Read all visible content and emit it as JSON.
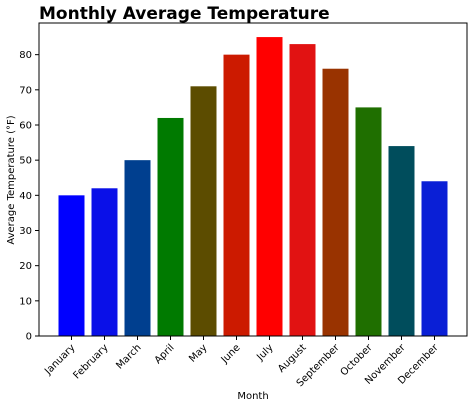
{
  "chart_data": {
    "type": "bar",
    "title": "Monthly Average Temperature",
    "xlabel": "Month",
    "ylabel": "Average Temperature (°F)",
    "categories": [
      "January",
      "February",
      "March",
      "April",
      "May",
      "June",
      "July",
      "August",
      "September",
      "October",
      "November",
      "December"
    ],
    "values": [
      40,
      42,
      50,
      62,
      71,
      80,
      85,
      83,
      76,
      65,
      54,
      44
    ],
    "colors": [
      "#0000ff",
      "#0a10e8",
      "#003f8f",
      "#007a00",
      "#5c4c00",
      "#cc1a00",
      "#ff0000",
      "#e11212",
      "#993300",
      "#1f6f00",
      "#004d5c",
      "#0a1fd6"
    ],
    "ylim": [
      0,
      89
    ],
    "yticks": [
      0,
      10,
      20,
      30,
      40,
      50,
      60,
      70,
      80
    ],
    "grid": false,
    "legend": "none"
  }
}
